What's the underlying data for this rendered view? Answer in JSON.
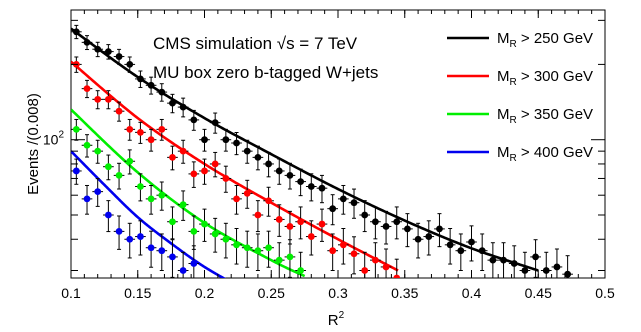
{
  "chart_data": {
    "type": "scatter",
    "title_lines": [
      "CMS simulation  √s = 7 TeV",
      "MU box zero b-tagged W+jets"
    ],
    "xlabel": "R",
    "xlabel_sup": "2",
    "ylabel": "Events /(0.008)",
    "xlim": [
      0.1,
      0.5
    ],
    "ylim": [
      28,
      330
    ],
    "yscale": "log",
    "x_ticks": [
      "0.1",
      "0.15",
      "0.2",
      "0.25",
      "0.3",
      "0.35",
      "0.4",
      "0.45",
      "0.5"
    ],
    "y_tick_label": {
      "base": "10",
      "exp": "2"
    },
    "grid": false,
    "legend_position": "top-right",
    "series": [
      {
        "legend_main": "M",
        "legend_sub": "R",
        "legend_rest": " > 250 GeV",
        "color": "#000000",
        "x": [
          0.104,
          0.112,
          0.12,
          0.128,
          0.136,
          0.144,
          0.152,
          0.16,
          0.168,
          0.176,
          0.184,
          0.192,
          0.2,
          0.208,
          0.216,
          0.224,
          0.232,
          0.24,
          0.248,
          0.256,
          0.264,
          0.272,
          0.28,
          0.288,
          0.296,
          0.304,
          0.312,
          0.32,
          0.328,
          0.336,
          0.344,
          0.352,
          0.36,
          0.368,
          0.376,
          0.384,
          0.392,
          0.4,
          0.408,
          0.416,
          0.424,
          0.432,
          0.44,
          0.448,
          0.456,
          0.464,
          0.472
        ],
        "y": [
          270,
          245,
          230,
          225,
          215,
          200,
          175,
          165,
          155,
          140,
          135,
          120,
          100,
          117,
          100,
          97,
          90,
          85,
          80,
          75,
          72,
          68,
          65,
          64,
          53,
          58,
          56,
          50,
          47,
          45,
          47,
          44,
          40,
          41,
          44,
          38,
          36,
          39,
          36,
          33,
          33,
          32,
          30,
          34,
          30,
          31,
          29
        ],
        "fit": [
          [
            0.1,
            278
          ],
          [
            0.15,
            178
          ],
          [
            0.2,
            122
          ],
          [
            0.25,
            87.5
          ],
          [
            0.3,
            63.5
          ],
          [
            0.35,
            47.5
          ],
          [
            0.4,
            36.8
          ],
          [
            0.45,
            30
          ]
        ]
      },
      {
        "legend_main": "M",
        "legend_sub": "R",
        "legend_rest": " > 300 GeV",
        "color": "#ff0000",
        "x": [
          0.104,
          0.112,
          0.12,
          0.128,
          0.136,
          0.144,
          0.152,
          0.16,
          0.168,
          0.176,
          0.184,
          0.192,
          0.2,
          0.208,
          0.216,
          0.224,
          0.232,
          0.24,
          0.248,
          0.256,
          0.264,
          0.272,
          0.28,
          0.288,
          0.296,
          0.304,
          0.312,
          0.32,
          0.328,
          0.336,
          0.344
        ],
        "y": [
          200,
          160,
          145,
          145,
          130,
          110,
          107,
          100,
          110,
          85,
          90,
          73,
          75,
          80,
          70,
          58,
          61,
          50,
          57,
          48,
          45,
          47,
          41,
          46,
          36,
          38,
          35,
          30,
          33,
          31,
          28
        ],
        "fit": [
          [
            0.1,
            205
          ],
          [
            0.15,
            122
          ],
          [
            0.2,
            80
          ],
          [
            0.25,
            56
          ],
          [
            0.3,
            40
          ],
          [
            0.345,
            30
          ]
        ]
      },
      {
        "legend_main": "M",
        "legend_sub": "R",
        "legend_rest": " > 350 GeV",
        "color": "#00ee00",
        "x": [
          0.104,
          0.112,
          0.12,
          0.128,
          0.136,
          0.144,
          0.152,
          0.16,
          0.168,
          0.176,
          0.184,
          0.192,
          0.2,
          0.208,
          0.216,
          0.224,
          0.232,
          0.24,
          0.248,
          0.256,
          0.264,
          0.272
        ],
        "y": [
          110,
          95,
          90,
          78,
          72,
          82,
          65,
          58,
          60,
          47,
          55,
          43,
          46,
          42,
          40,
          38,
          37,
          36,
          37,
          33,
          34,
          30
        ],
        "fit": [
          [
            0.1,
            132
          ],
          [
            0.15,
            74
          ],
          [
            0.2,
            46.5
          ],
          [
            0.25,
            33
          ],
          [
            0.275,
            28.5
          ]
        ]
      },
      {
        "legend_main": "M",
        "legend_sub": "R",
        "legend_rest": " > 400 GeV",
        "color": "#0000ee",
        "x": [
          0.104,
          0.112,
          0.12,
          0.128,
          0.136,
          0.144,
          0.152,
          0.16,
          0.168,
          0.176,
          0.184,
          0.192
        ],
        "y": [
          75,
          58,
          62,
          50,
          43,
          40,
          41,
          37,
          36,
          34,
          30,
          32
        ],
        "fit": [
          [
            0.1,
            90
          ],
          [
            0.125,
            66
          ],
          [
            0.15,
            49
          ],
          [
            0.175,
            38.5
          ],
          [
            0.2,
            31
          ],
          [
            0.225,
            26
          ]
        ]
      }
    ]
  }
}
